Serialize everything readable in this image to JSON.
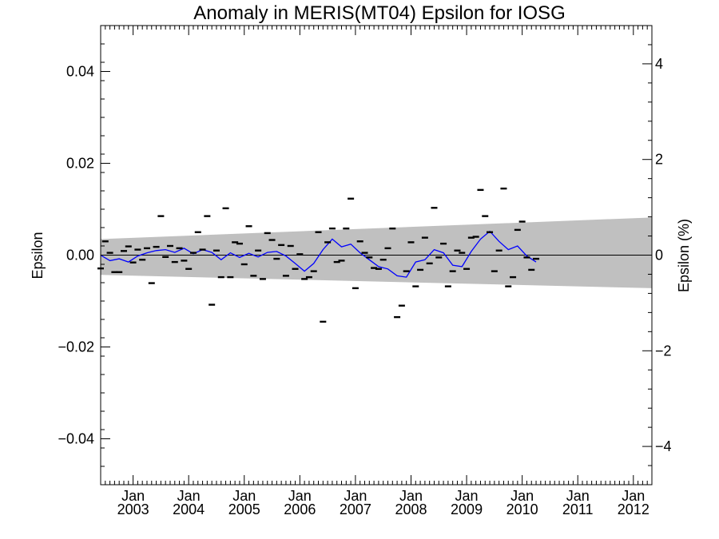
{
  "chart_data": {
    "type": "scatter",
    "title": "Anomaly in MERIS(MT04) Epsilon for IOSG",
    "ylabel": "Epsilon",
    "ylabel_right": "Epsilon (%)",
    "xlabel": "",
    "xlim": [
      "2002-06",
      "2012-05"
    ],
    "ylim": [
      -0.05,
      0.05
    ],
    "ylim_right": [
      -4.8,
      4.8
    ],
    "grid": false,
    "legend": "none",
    "y_ticks": [
      {
        "value": 0.04,
        "label": "0.04"
      },
      {
        "value": 0.02,
        "label": "0.02"
      },
      {
        "value": 0.0,
        "label": "0.00"
      },
      {
        "value": -0.02,
        "label": "−0.02"
      },
      {
        "value": -0.04,
        "label": "−0.04"
      }
    ],
    "y_ticks_right": [
      {
        "value": 4,
        "label": "4"
      },
      {
        "value": 2,
        "label": "2"
      },
      {
        "value": 0,
        "label": "0"
      },
      {
        "value": -2,
        "label": "−2"
      },
      {
        "value": -4,
        "label": "−4"
      }
    ],
    "x_ticks": [
      {
        "date": "2003-01",
        "label_month": "Jan",
        "label_year": "2003"
      },
      {
        "date": "2004-01",
        "label_month": "Jan",
        "label_year": "2004"
      },
      {
        "date": "2005-01",
        "label_month": "Jan",
        "label_year": "2005"
      },
      {
        "date": "2006-01",
        "label_month": "Jan",
        "label_year": "2006"
      },
      {
        "date": "2007-01",
        "label_month": "Jan",
        "label_year": "2007"
      },
      {
        "date": "2008-01",
        "label_month": "Jan",
        "label_year": "2008"
      },
      {
        "date": "2009-01",
        "label_month": "Jan",
        "label_year": "2009"
      },
      {
        "date": "2010-01",
        "label_month": "Jan",
        "label_year": "2010"
      },
      {
        "date": "2011-01",
        "label_month": "Jan",
        "label_year": "2011"
      },
      {
        "date": "2012-01",
        "label_month": "Jan",
        "label_year": "2012"
      }
    ],
    "zero_line": 0.0,
    "band": {
      "start_date": "2002-06",
      "end_date": "2012-05",
      "upper_start": 0.0035,
      "upper_end": 0.0082,
      "lower_start": -0.0043,
      "lower_end": -0.0072,
      "color": "#c0c0c0"
    },
    "series": [
      {
        "kind": "markers",
        "color": "#000000",
        "points": [
          {
            "x": "2002-06",
            "y": -0.0029
          },
          {
            "x": "2002-07",
            "y": 0.003
          },
          {
            "x": "2002-08",
            "y": 0.0005
          },
          {
            "x": "2002-09",
            "y": -0.0037
          },
          {
            "x": "2002-10",
            "y": -0.0037
          },
          {
            "x": "2002-11",
            "y": 0.0009
          },
          {
            "x": "2002-12",
            "y": 0.0019
          },
          {
            "x": "2003-01",
            "y": -0.0016
          },
          {
            "x": "2003-02",
            "y": 0.0012
          },
          {
            "x": "2003-03",
            "y": -0.001
          },
          {
            "x": "2003-04",
            "y": 0.0015
          },
          {
            "x": "2003-05",
            "y": -0.0061
          },
          {
            "x": "2003-06",
            "y": 0.0018
          },
          {
            "x": "2003-07",
            "y": 0.0085
          },
          {
            "x": "2003-08",
            "y": -0.0004
          },
          {
            "x": "2003-09",
            "y": 0.002
          },
          {
            "x": "2003-10",
            "y": -0.0015
          },
          {
            "x": "2003-11",
            "y": 0.0015
          },
          {
            "x": "2003-12",
            "y": -0.0012
          },
          {
            "x": "2004-01",
            "y": -0.003
          },
          {
            "x": "2004-02",
            "y": 0.0005
          },
          {
            "x": "2004-03",
            "y": 0.005
          },
          {
            "x": "2004-04",
            "y": 0.0012
          },
          {
            "x": "2004-05",
            "y": 0.0085
          },
          {
            "x": "2004-06",
            "y": -0.0108
          },
          {
            "x": "2004-07",
            "y": 0.001
          },
          {
            "x": "2004-08",
            "y": -0.0048
          },
          {
            "x": "2004-09",
            "y": 0.0102
          },
          {
            "x": "2004-10",
            "y": -0.0048
          },
          {
            "x": "2004-11",
            "y": 0.0028
          },
          {
            "x": "2004-12",
            "y": 0.0025
          },
          {
            "x": "2005-01",
            "y": -0.002
          },
          {
            "x": "2005-02",
            "y": 0.0063
          },
          {
            "x": "2005-03",
            "y": -0.0045
          },
          {
            "x": "2005-04",
            "y": 0.001
          },
          {
            "x": "2005-05",
            "y": -0.0052
          },
          {
            "x": "2005-06",
            "y": 0.0048
          },
          {
            "x": "2005-07",
            "y": 0.0033
          },
          {
            "x": "2005-08",
            "y": -0.0008
          },
          {
            "x": "2005-09",
            "y": 0.0022
          },
          {
            "x": "2005-10",
            "y": -0.0045
          },
          {
            "x": "2005-11",
            "y": 0.002
          },
          {
            "x": "2005-12",
            "y": -0.003
          },
          {
            "x": "2006-01",
            "y": 0.0002
          },
          {
            "x": "2006-02",
            "y": -0.0052
          },
          {
            "x": "2006-03",
            "y": -0.0048
          },
          {
            "x": "2006-04",
            "y": -0.0035
          },
          {
            "x": "2006-05",
            "y": 0.005
          },
          {
            "x": "2006-06",
            "y": -0.0145
          },
          {
            "x": "2006-07",
            "y": 0.0028
          },
          {
            "x": "2006-08",
            "y": 0.0058
          },
          {
            "x": "2006-09",
            "y": -0.0015
          },
          {
            "x": "2006-10",
            "y": -0.0012
          },
          {
            "x": "2006-11",
            "y": 0.0058
          },
          {
            "x": "2006-12",
            "y": 0.0123
          },
          {
            "x": "2007-01",
            "y": -0.0072
          },
          {
            "x": "2007-02",
            "y": 0.003
          },
          {
            "x": "2007-03",
            "y": 0.0005
          },
          {
            "x": "2007-04",
            "y": -0.0005
          },
          {
            "x": "2007-05",
            "y": -0.0028
          },
          {
            "x": "2007-06",
            "y": -0.003
          },
          {
            "x": "2007-07",
            "y": -0.001
          },
          {
            "x": "2007-08",
            "y": 0.0015
          },
          {
            "x": "2007-09",
            "y": 0.0058
          },
          {
            "x": "2007-10",
            "y": -0.0135
          },
          {
            "x": "2007-11",
            "y": -0.011
          },
          {
            "x": "2007-12",
            "y": -0.0035
          },
          {
            "x": "2008-01",
            "y": 0.0028
          },
          {
            "x": "2008-02",
            "y": -0.0068
          },
          {
            "x": "2008-03",
            "y": -0.0032
          },
          {
            "x": "2008-04",
            "y": 0.0038
          },
          {
            "x": "2008-05",
            "y": -0.0018
          },
          {
            "x": "2008-06",
            "y": 0.0103
          },
          {
            "x": "2008-07",
            "y": -0.0005
          },
          {
            "x": "2008-08",
            "y": 0.0025
          },
          {
            "x": "2008-09",
            "y": -0.0068
          },
          {
            "x": "2008-10",
            "y": -0.0035
          },
          {
            "x": "2008-11",
            "y": 0.001
          },
          {
            "x": "2008-12",
            "y": 0.0005
          },
          {
            "x": "2009-01",
            "y": -0.003
          },
          {
            "x": "2009-02",
            "y": 0.0038
          },
          {
            "x": "2009-03",
            "y": 0.004
          },
          {
            "x": "2009-04",
            "y": 0.0142
          },
          {
            "x": "2009-05",
            "y": 0.0085
          },
          {
            "x": "2009-06",
            "y": 0.005
          },
          {
            "x": "2009-07",
            "y": -0.0035
          },
          {
            "x": "2009-08",
            "y": 0.001
          },
          {
            "x": "2009-09",
            "y": 0.0145
          },
          {
            "x": "2009-10",
            "y": -0.0068
          },
          {
            "x": "2009-11",
            "y": -0.0048
          },
          {
            "x": "2009-12",
            "y": 0.0055
          },
          {
            "x": "2010-01",
            "y": 0.0073
          },
          {
            "x": "2010-02",
            "y": -0.0005
          },
          {
            "x": "2010-03",
            "y": -0.0032
          },
          {
            "x": "2010-04",
            "y": -0.0008
          }
        ]
      },
      {
        "kind": "line",
        "color": "#0000ff",
        "name_hint": "running mean",
        "points": [
          {
            "x": "2002-06",
            "y": 0.0
          },
          {
            "x": "2002-08",
            "y": -0.0012
          },
          {
            "x": "2002-10",
            "y": -0.0008
          },
          {
            "x": "2002-12",
            "y": -0.0015
          },
          {
            "x": "2003-02",
            "y": -0.0002
          },
          {
            "x": "2003-04",
            "y": 0.0005
          },
          {
            "x": "2003-06",
            "y": 0.001
          },
          {
            "x": "2003-08",
            "y": 0.0012
          },
          {
            "x": "2003-10",
            "y": 0.0006
          },
          {
            "x": "2003-12",
            "y": 0.0015
          },
          {
            "x": "2004-02",
            "y": 0.0003
          },
          {
            "x": "2004-04",
            "y": 0.0012
          },
          {
            "x": "2004-06",
            "y": 0.0006
          },
          {
            "x": "2004-08",
            "y": -0.001
          },
          {
            "x": "2004-10",
            "y": 0.0005
          },
          {
            "x": "2004-12",
            "y": -0.0005
          },
          {
            "x": "2005-02",
            "y": 0.0004
          },
          {
            "x": "2005-04",
            "y": -0.0004
          },
          {
            "x": "2005-06",
            "y": 0.0006
          },
          {
            "x": "2005-08",
            "y": 0.0008
          },
          {
            "x": "2005-10",
            "y": -0.0002
          },
          {
            "x": "2005-12",
            "y": -0.0018
          },
          {
            "x": "2006-02",
            "y": -0.0035
          },
          {
            "x": "2006-04",
            "y": -0.0018
          },
          {
            "x": "2006-06",
            "y": 0.0012
          },
          {
            "x": "2006-08",
            "y": 0.0035
          },
          {
            "x": "2006-10",
            "y": 0.0018
          },
          {
            "x": "2006-12",
            "y": 0.0024
          },
          {
            "x": "2007-02",
            "y": 0.0005
          },
          {
            "x": "2007-04",
            "y": -0.001
          },
          {
            "x": "2007-06",
            "y": -0.0025
          },
          {
            "x": "2007-08",
            "y": -0.003
          },
          {
            "x": "2007-10",
            "y": -0.0045
          },
          {
            "x": "2007-12",
            "y": -0.0048
          },
          {
            "x": "2008-02",
            "y": -0.0015
          },
          {
            "x": "2008-04",
            "y": -0.001
          },
          {
            "x": "2008-06",
            "y": 0.0012
          },
          {
            "x": "2008-08",
            "y": 0.0005
          },
          {
            "x": "2008-10",
            "y": -0.0022
          },
          {
            "x": "2008-12",
            "y": -0.0025
          },
          {
            "x": "2009-02",
            "y": 0.0008
          },
          {
            "x": "2009-04",
            "y": 0.0035
          },
          {
            "x": "2009-06",
            "y": 0.0052
          },
          {
            "x": "2009-08",
            "y": 0.003
          },
          {
            "x": "2009-10",
            "y": 0.0012
          },
          {
            "x": "2009-12",
            "y": 0.002
          },
          {
            "x": "2010-02",
            "y": -0.0002
          },
          {
            "x": "2010-04",
            "y": -0.0015
          }
        ]
      }
    ]
  }
}
